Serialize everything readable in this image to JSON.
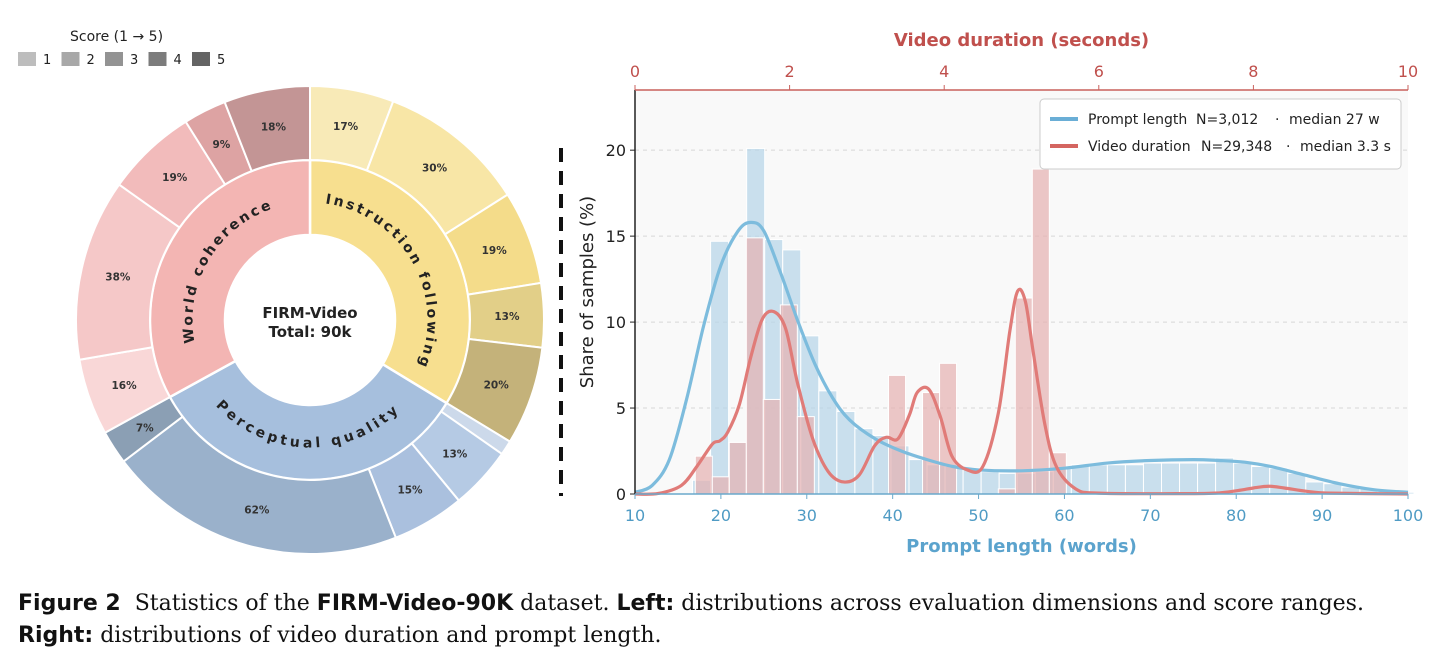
{
  "chart_data": [
    {
      "type": "sunburst",
      "center_title": "FIRM-Video",
      "center_subtitle": "Total: 90k",
      "legend_title": "Score  (1 → 5)",
      "legend_items": [
        "1",
        "2",
        "3",
        "4",
        "5"
      ],
      "legend_colors": [
        "#bdbdbd",
        "#a8a8a8",
        "#939393",
        "#7c7c7c",
        "#646464"
      ],
      "categories": [
        {
          "name": "Instruction following",
          "share": 0.337,
          "colors": [
            "#f8eab7",
            "#f8e6a6",
            "#f4dc8a",
            "#e2cf88",
            "#c4b27a"
          ],
          "inner_color": "#f7df8f",
          "scores": [
            17,
            30,
            19,
            13,
            20
          ],
          "labels": [
            "17%",
            "30%",
            "19%",
            "13%",
            "20%"
          ]
        },
        {
          "name": "Perceptual quality",
          "share": 0.333,
          "colors": [
            "#ccd9ea",
            "#b5cae4",
            "#aac0de",
            "#9ab1cb",
            "#8b9fb4"
          ],
          "inner_color": "#a6bfdd",
          "scores": [
            3,
            13,
            15,
            62,
            7
          ],
          "labels": [
            "",
            "13%",
            "15%",
            "62%",
            "7%"
          ]
        },
        {
          "name": "World coherence",
          "share": 0.33,
          "colors": [
            "#f9d7d7",
            "#f5c8c8",
            "#f2bbbb",
            "#dda3a3",
            "#c39595"
          ],
          "inner_color": "#f3b5b3",
          "scores": [
            16,
            38,
            19,
            9,
            18
          ],
          "labels": [
            "16%",
            "38%",
            "19%",
            "9%",
            "18%"
          ]
        }
      ]
    },
    {
      "type": "histogram+kde",
      "xlabel": "Prompt length (words)",
      "xlabel_top": "Video duration (seconds)",
      "ylabel": "Share of samples (%)",
      "x_bottom_ticks": [
        10,
        20,
        30,
        40,
        50,
        60,
        70,
        80,
        90,
        100
      ],
      "x_top_ticks": [
        0,
        2,
        4,
        6,
        8,
        10
      ],
      "y_ticks": [
        0,
        5,
        10,
        15,
        20
      ],
      "xlim_bottom": [
        10,
        100
      ],
      "xlim_top": [
        0,
        10
      ],
      "ylim": [
        0,
        23.5
      ],
      "grid": "horizontal dashed",
      "legend_position": "top-right",
      "series": [
        {
          "name": "Prompt length",
          "legend_count": "N=3,012",
          "legend_sep": "·",
          "legend_median": "median 27 w",
          "color": "#6aaed6",
          "bar_color": "#b8d5e8",
          "bin_width": 2.1,
          "bins_start": [
            16.7,
            18.8,
            20.9,
            23.0,
            25.1,
            27.2,
            29.3,
            31.4,
            33.5,
            35.6,
            37.7,
            39.8,
            41.9,
            44.0,
            46.1,
            48.2,
            50.3,
            52.4,
            54.5,
            56.6,
            58.7,
            60.8,
            62.9,
            65.0,
            67.1,
            69.2,
            71.3,
            73.4,
            75.5,
            77.6,
            79.7,
            81.8,
            83.9,
            86.0,
            88.1,
            90.2,
            92.3,
            94.4,
            96.5,
            98.6
          ],
          "bin_values": [
            0.8,
            14.7,
            3.0,
            20.1,
            14.8,
            14.2,
            9.2,
            6.0,
            4.8,
            3.8,
            3.4,
            2.8,
            2.0,
            1.7,
            1.6,
            1.5,
            1.3,
            1.2,
            1.2,
            1.3,
            1.6,
            1.7,
            1.7,
            1.7,
            1.7,
            1.8,
            1.8,
            1.8,
            1.8,
            2.1,
            1.8,
            1.6,
            1.5,
            1.2,
            0.7,
            0.6,
            0.4,
            0.3,
            0.2,
            0.1
          ],
          "kde_x": [
            10,
            12,
            14,
            16,
            18,
            20,
            22,
            23.5,
            25,
            27,
            29,
            31,
            33,
            35,
            38,
            41,
            44,
            47,
            50,
            55,
            60,
            65,
            70,
            75,
            78,
            81,
            84,
            88,
            92,
            96,
            100
          ],
          "kde_y": [
            0.1,
            0.5,
            2.0,
            5.5,
            9.8,
            13.3,
            15.3,
            15.8,
            15.3,
            12.8,
            10.0,
            7.5,
            5.6,
            4.3,
            3.2,
            2.5,
            2.0,
            1.6,
            1.4,
            1.35,
            1.5,
            1.8,
            1.95,
            2.0,
            1.95,
            1.85,
            1.6,
            1.1,
            0.6,
            0.25,
            0.1
          ]
        },
        {
          "name": "Video duration",
          "legend_count": "N=29,348",
          "legend_sep": "·",
          "legend_median": "median 3.3 s",
          "color": "#d9534f",
          "bar_color": "#e5b0b0",
          "bin_width": 0.22,
          "bins_start": [
            0.78,
            1.0,
            1.22,
            1.44,
            1.66,
            1.88,
            2.1,
            3.28,
            3.72,
            3.94,
            4.92,
            5.14
          ],
          "bin_values": [
            2.2,
            1.0,
            3.0,
            14.9,
            5.5,
            11.0,
            4.5,
            6.9,
            5.9,
            7.6,
            11.4,
            18.9
          ],
          "bins2_start": [
            4.7,
            5.36
          ],
          "bins2_values": [
            0.3,
            2.4
          ],
          "kde_x": [
            0,
            0.3,
            0.6,
            0.8,
            1.0,
            1.1,
            1.2,
            1.35,
            1.5,
            1.65,
            1.8,
            1.95,
            2.1,
            2.3,
            2.5,
            2.7,
            2.9,
            3.1,
            3.25,
            3.4,
            3.55,
            3.65,
            3.8,
            3.95,
            4.1,
            4.3,
            4.5,
            4.7,
            4.85,
            4.95,
            5.05,
            5.15,
            5.3,
            5.45,
            5.7,
            6.0,
            7.0,
            7.5,
            7.8,
            8.0,
            8.2,
            8.4,
            8.7,
            9.0,
            10.0
          ],
          "kde_y": [
            0,
            0.03,
            0.5,
            1.6,
            2.9,
            3.1,
            3.6,
            5.2,
            8.0,
            10.2,
            10.6,
            9.6,
            6.5,
            3.2,
            1.3,
            0.7,
            1.1,
            2.8,
            3.3,
            3.2,
            4.6,
            5.9,
            6.1,
            4.5,
            2.2,
            1.4,
            1.6,
            4.7,
            9.5,
            11.8,
            11.2,
            8.3,
            4.1,
            1.6,
            0.3,
            0.05,
            0.02,
            0.05,
            0.2,
            0.35,
            0.45,
            0.35,
            0.15,
            0.05,
            0
          ]
        }
      ]
    }
  ],
  "caption": {
    "figure_label": "Figure 2",
    "text_1": "  Statistics of the ",
    "bold_name": "FIRM-Video-90K",
    "text_2": " dataset. ",
    "left_label": "Left:",
    "text_3": " distributions across evaluation dimensions and score ranges.",
    "right_label": "Right:",
    "text_4": " distributions of video duration and prompt length."
  }
}
